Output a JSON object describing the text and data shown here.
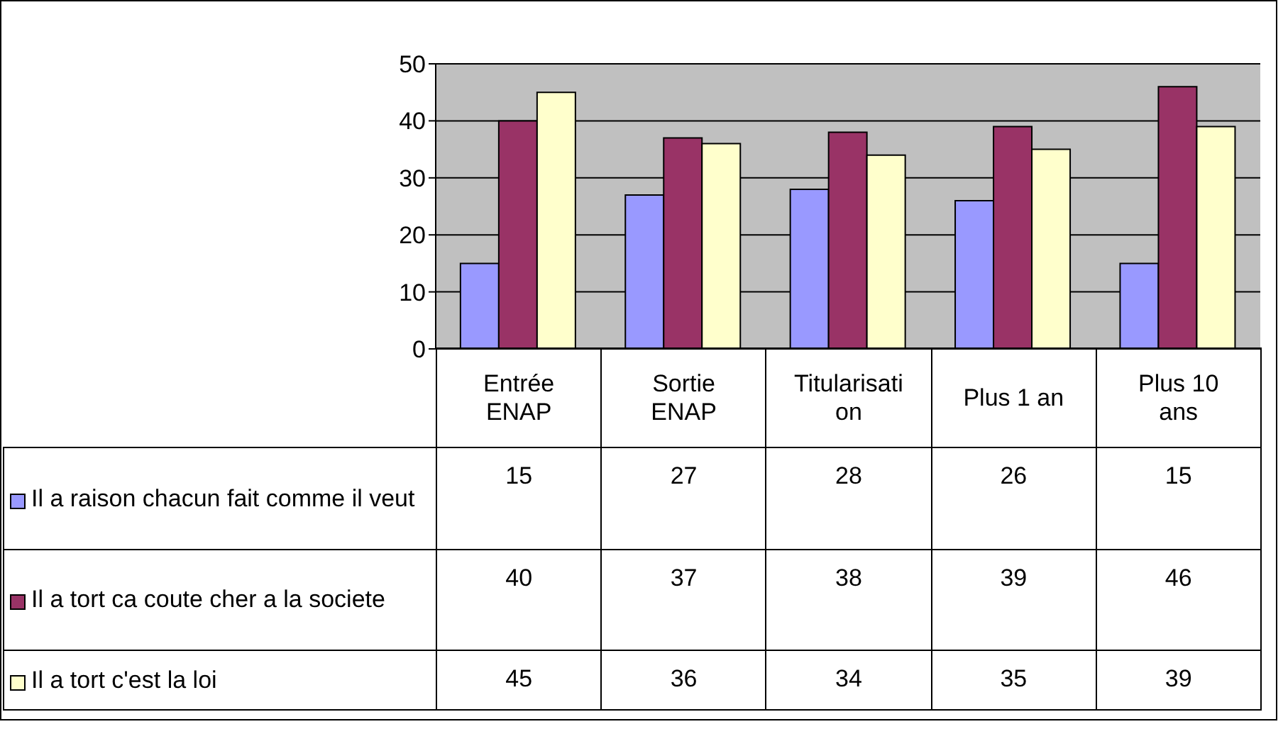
{
  "chart_data": {
    "type": "bar",
    "categories": [
      "Entrée ENAP",
      "Sortie ENAP",
      "Titularisation",
      "Plus 1 an",
      "Plus 10 ans"
    ],
    "series": [
      {
        "name": "Il a raison chacun fait comme il veut",
        "color": "#9999ff",
        "values": [
          15,
          27,
          28,
          26,
          15
        ]
      },
      {
        "name": "Il a tort ca coute cher a la societe",
        "color": "#993366",
        "values": [
          40,
          37,
          38,
          39,
          46
        ]
      },
      {
        "name": "Il a tort c'est la loi",
        "color": "#ffffcc",
        "values": [
          45,
          36,
          34,
          35,
          39
        ]
      }
    ],
    "ylim": [
      0,
      50
    ],
    "yticks": [
      0,
      10,
      20,
      30,
      40,
      50
    ],
    "grid": "y",
    "legend": "bottom",
    "data_labels": true
  }
}
